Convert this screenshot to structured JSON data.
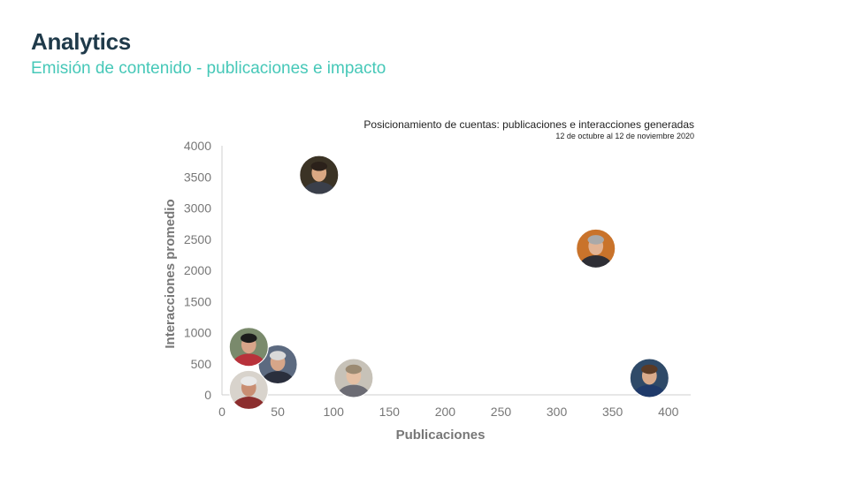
{
  "header": {
    "title": "Analytics",
    "subtitle": "Emisión de contenido - publicaciones e impacto"
  },
  "chart_data": {
    "type": "scatter",
    "title": "Posicionamiento de cuentas: publicaciones e interacciones generadas",
    "subtitle": "12 de octubre al 12 de noviembre 2020",
    "xlabel": "Publicaciones",
    "ylabel": "Interacciones  promedio",
    "xlim": [
      0,
      420
    ],
    "ylim": [
      0,
      4000
    ],
    "xticks": [
      0,
      50,
      100,
      150,
      200,
      250,
      300,
      350,
      400
    ],
    "yticks": [
      0,
      500,
      1000,
      1500,
      2000,
      2500,
      3000,
      3500,
      4000
    ],
    "grid": false,
    "marker": "avatar-photo",
    "points": [
      {
        "x": 87,
        "y": 3530
      },
      {
        "x": 335,
        "y": 2350
      },
      {
        "x": 383,
        "y": 270
      },
      {
        "x": 118,
        "y": 270
      },
      {
        "x": 50,
        "y": 490
      },
      {
        "x": 24,
        "y": 770
      },
      {
        "x": 24,
        "y": 80
      }
    ],
    "colors": {
      "axis": "#cfcfcf",
      "tick_text": "#777777",
      "title_color": "#1f3a4a",
      "subtitle_color": "#46c8b8"
    }
  }
}
